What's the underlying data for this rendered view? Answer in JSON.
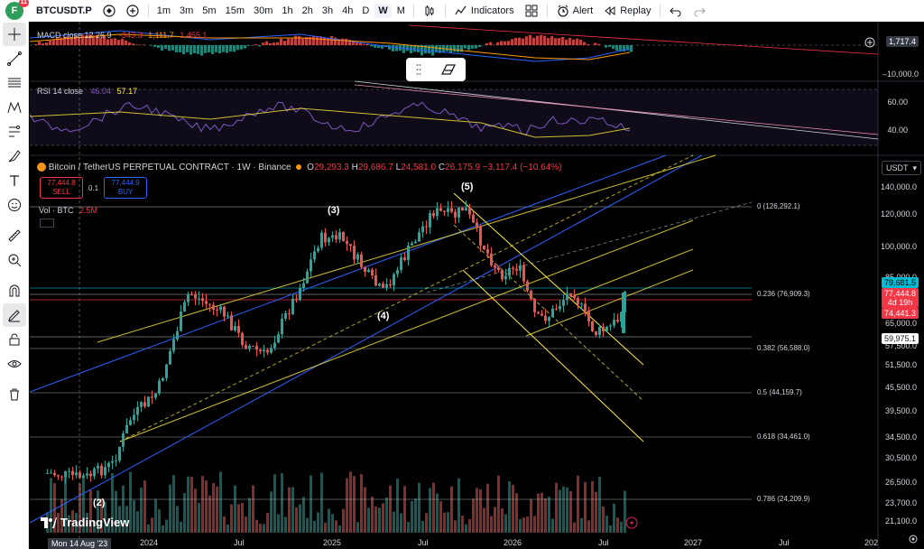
{
  "topbar": {
    "avatar_letter": "F",
    "notification_count": "11",
    "symbol": "BTCUSDT.P",
    "intervals": [
      "1m",
      "3m",
      "5m",
      "15m",
      "30m",
      "1h",
      "2h",
      "3h",
      "4h",
      "D",
      "W",
      "M"
    ],
    "active_interval": "W",
    "indicators_label": "Indicators",
    "alert_label": "Alert",
    "replay_label": "Replay"
  },
  "macd": {
    "name": "MACD close 12 26 9",
    "v1": "-343.3",
    "v2": "1,111.7",
    "v3": "1,455.1",
    "axis_top": "1,717.4",
    "axis_bottom": "–10,000.0"
  },
  "rsi": {
    "name": "RSI 14 close",
    "v1": "46.04",
    "v2": "57.17",
    "axis_60": "60.00",
    "axis_40": "40.00"
  },
  "main": {
    "title": "Bitcoin / TetherUS PERPETUAL CONTRACT · 1W · Binance",
    "o_label": "O",
    "o_val": "29,293.3",
    "h_label": "H",
    "h_val": "29,686.7",
    "l_label": "L",
    "l_val": "24,581.0",
    "c_label": "C",
    "c_val": "26,175.9",
    "change": "−3,117.4 (−10.64%)",
    "sell_price": "77,444.8",
    "sell_label": "SELL",
    "spread": "0.1",
    "buy_price": "77,444.9",
    "buy_label": "BUY",
    "vol_label": "Vol · BTC",
    "vol_val": "2.5M",
    "currency": "USDT"
  },
  "price_axis": [
    "140,000.0",
    "120,000.0",
    "100,000.0",
    "85,000.0",
    "75,000.0",
    "65,000.0",
    "57,500.0",
    "51,500.0",
    "45,500.0",
    "39,500.0",
    "34,500.0",
    "30,500.0",
    "26,500.0",
    "23,700.0",
    "21,100.0"
  ],
  "price_labels": {
    "p1": "79,681.5",
    "p2": "77,444.8",
    "p2_sub": "4d 19h",
    "p3": "74,441.3",
    "p4": "59,975.1"
  },
  "fib": {
    "f0": "0 (126,292.1)",
    "f236": "0.236 (76,909.3)",
    "f382": "0.382 (56,588.0)",
    "f5": "0.5 (44,159.7)",
    "f618": "0.618 (34,461.0)",
    "f786": "0.786 (24,209.9)"
  },
  "waves": {
    "w2": "(2)",
    "w3": "(3)",
    "w4": "(4)",
    "w5": "(5)"
  },
  "dates": [
    "2024",
    "Jul",
    "2025",
    "Jul",
    "2026",
    "Jul",
    "2027",
    "Jul",
    "202"
  ],
  "current_date": "Mon 14 Aug '23",
  "logo": "TradingView",
  "colors": {
    "up": "#26a69a",
    "down": "#ef5350",
    "sell": "#f23645",
    "buy": "#2962ff",
    "yellow": "#ffeb3b"
  }
}
